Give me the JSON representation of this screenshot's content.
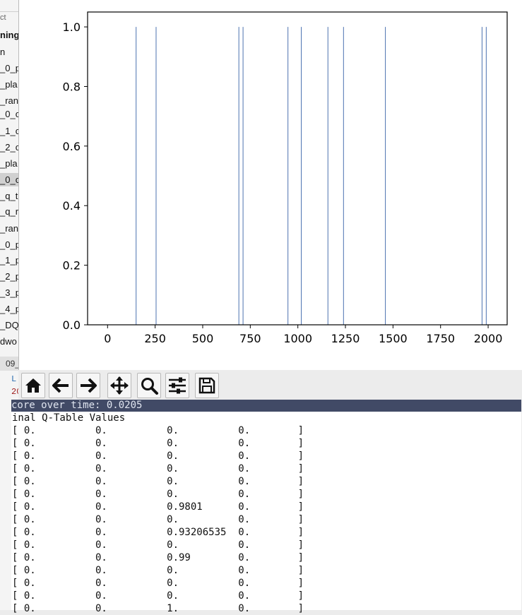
{
  "sidebar": {
    "rows": [
      "ct",
      "ning",
      "n",
      "_0_p",
      "_pla",
      "_ran",
      "_0_c",
      "_1_c",
      "_2_c",
      "_pla",
      "_0_c",
      "_q_t",
      "_q_r",
      "_ran",
      "_0_p",
      "_1_p",
      "_2_p",
      "_3_p",
      "_4_p",
      "_DQ",
      "dwo"
    ],
    "tab_label": "09_",
    "code_line_1": "L",
    "code_line_2": "20"
  },
  "chart_data": {
    "type": "bar",
    "x": [
      150,
      255,
      690,
      712,
      948,
      1018,
      1158,
      1240,
      1460,
      1968,
      1990
    ],
    "values": [
      1,
      1,
      1,
      1,
      1,
      1,
      1,
      1,
      1,
      1,
      1
    ],
    "xlim": [
      -105,
      2100
    ],
    "ylim": [
      0,
      1.05
    ],
    "xticks": [
      0,
      250,
      500,
      750,
      1000,
      1250,
      1500,
      1750,
      2000
    ],
    "yticks": [
      0.0,
      0.2,
      0.4,
      0.6,
      0.8,
      1.0
    ],
    "xtick_labels": [
      "0",
      "250",
      "500",
      "750",
      "1000",
      "1250",
      "1500",
      "1750",
      "2000"
    ],
    "ytick_labels": [
      "0.0",
      "0.2",
      "0.4",
      "0.6",
      "0.8",
      "1.0"
    ],
    "bar_color": "#4c72b0",
    "grid": false,
    "title": "",
    "xlabel": "",
    "ylabel": ""
  },
  "toolbar": {
    "buttons": [
      {
        "name": "home-icon"
      },
      {
        "name": "back-arrow-icon"
      },
      {
        "name": "forward-arrow-icon"
      },
      {
        "name": "pan-icon"
      },
      {
        "name": "zoom-icon"
      },
      {
        "name": "configure-subplots-icon"
      },
      {
        "name": "save-icon"
      }
    ]
  },
  "terminal": {
    "highlight_line": "core over time: 0.0205",
    "header": "inal Q-Table Values",
    "rows": [
      "[ 0.          0.          0.          0.        ]",
      "[ 0.          0.          0.          0.        ]",
      "[ 0.          0.          0.          0.        ]",
      "[ 0.          0.          0.          0.        ]",
      "[ 0.          0.          0.          0.        ]",
      "[ 0.          0.          0.          0.        ]",
      "[ 0.          0.          0.9801      0.        ]",
      "[ 0.          0.          0.          0.        ]",
      "[ 0.          0.          0.93206535  0.        ]",
      "[ 0.          0.          0.          0.        ]",
      "[ 0.          0.          0.99        0.        ]",
      "[ 0.          0.          0.          0.        ]",
      "[ 0.          0.          0.          0.        ]",
      "[ 0.          0.          0.          0.        ]",
      "[ 0.          0.          1.          0.        ]"
    ]
  }
}
